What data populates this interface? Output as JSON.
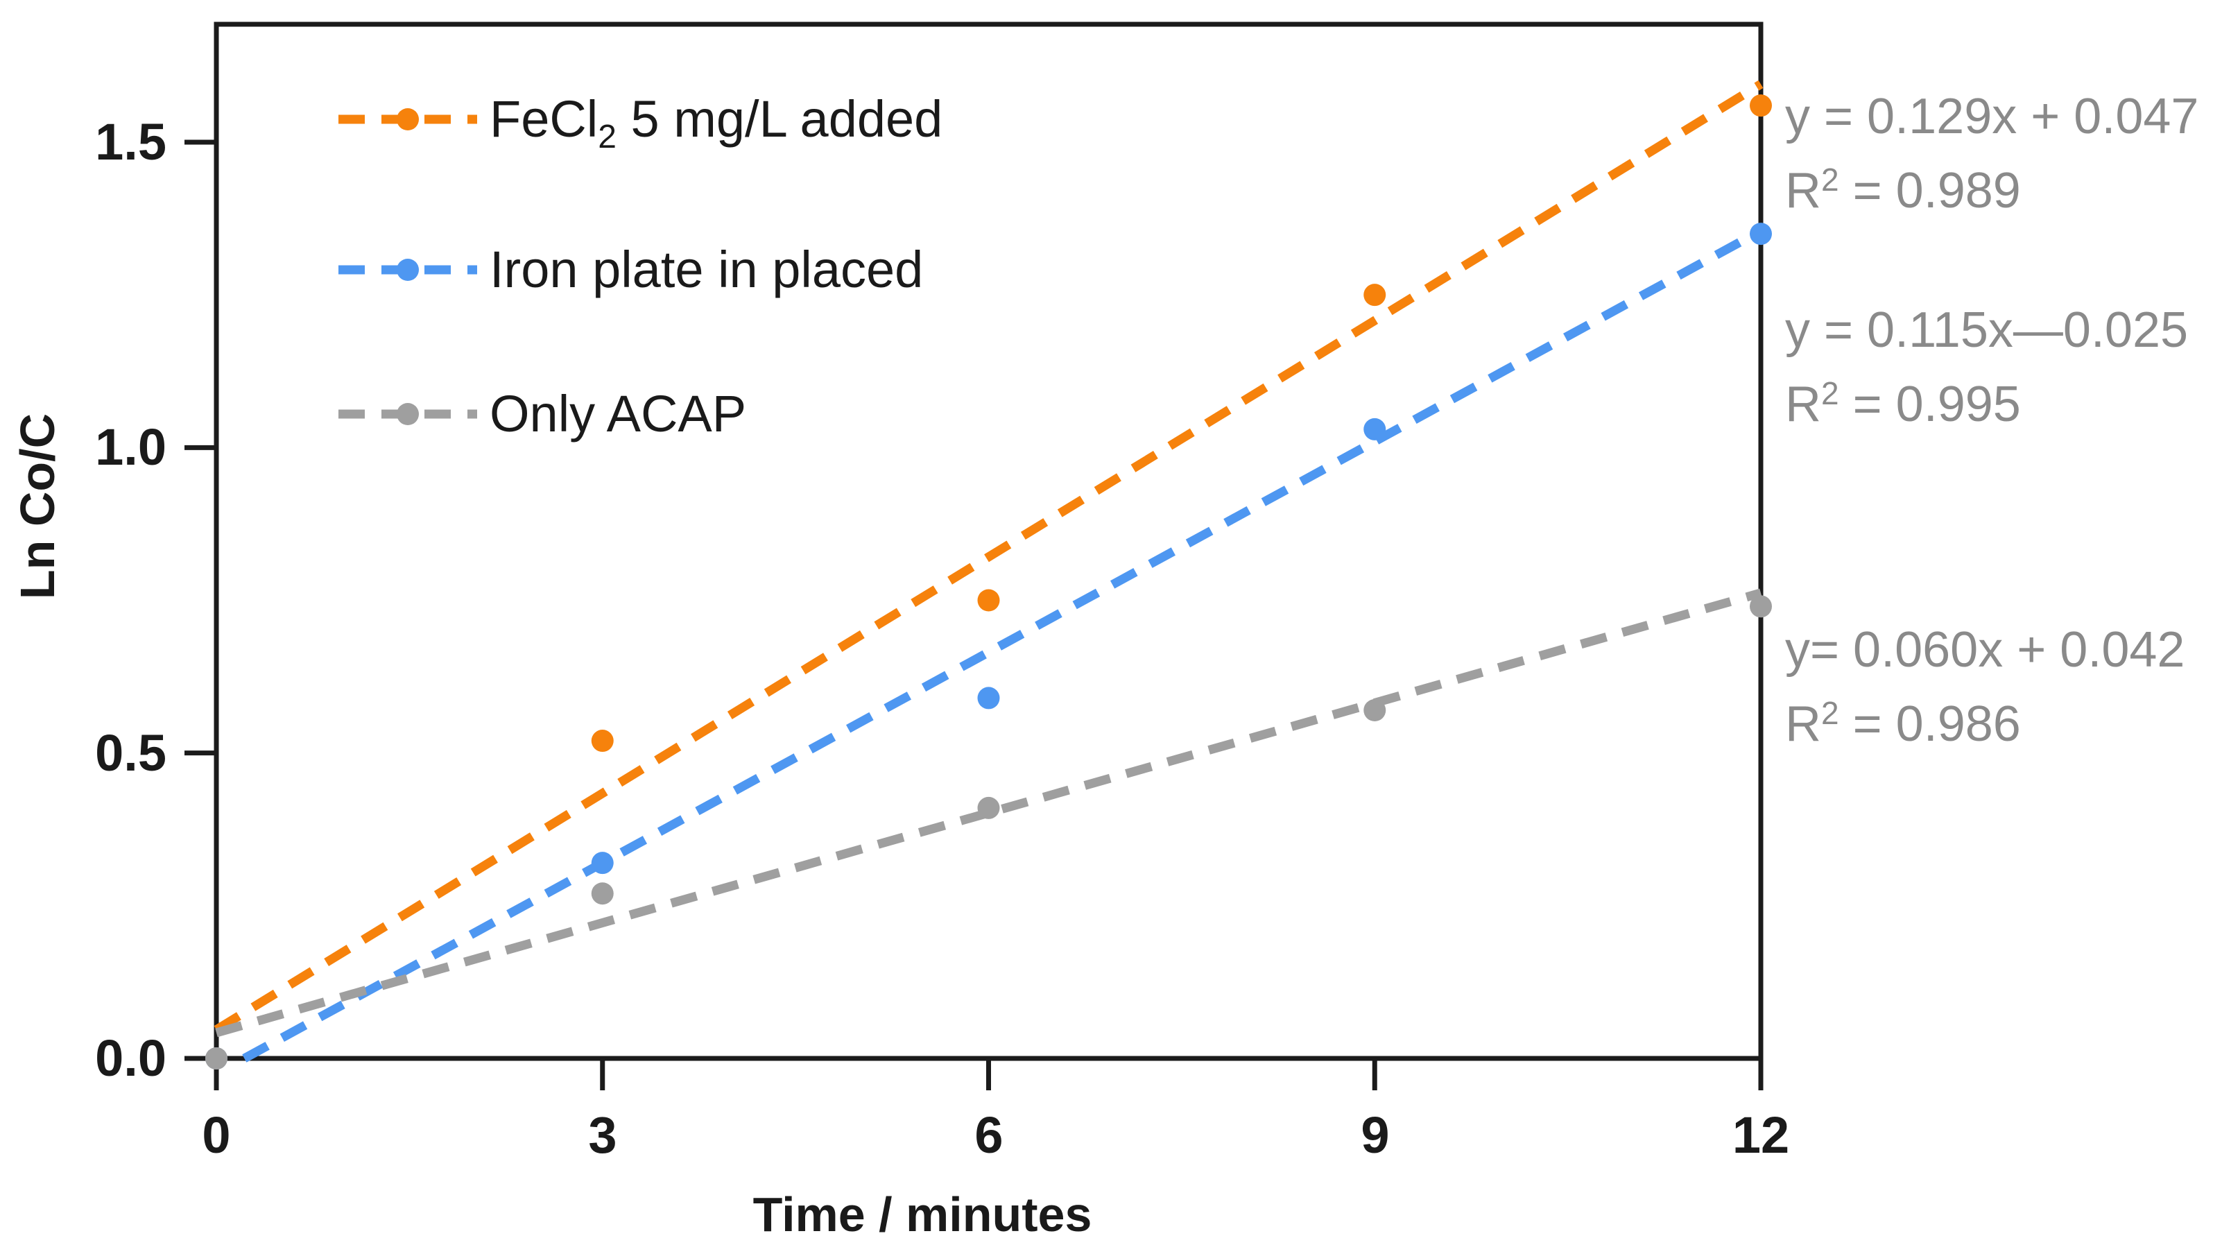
{
  "figure": {
    "xlabel": "Time / minutes",
    "ylabel": "Ln Co/C",
    "x_tick_labels": [
      "0",
      "3",
      "6",
      "9",
      "12"
    ],
    "y_tick_labels": [
      "0.0",
      "0.5",
      "1.0",
      "1.5"
    ]
  },
  "chart_data": {
    "type": "scatter",
    "title": "",
    "xlabel": "Time / minutes",
    "ylabel": "Ln Co/C",
    "x": [
      0,
      3,
      6,
      9,
      12
    ],
    "xlim": [
      0,
      12
    ],
    "ylim": [
      0,
      1.69
    ],
    "x_ticks": [
      0,
      3,
      6,
      9,
      12
    ],
    "y_ticks": [
      0.0,
      0.5,
      1.0,
      1.5
    ],
    "grid": false,
    "legend_position": "upper-left-inside",
    "series": [
      {
        "key": "fecl2",
        "name": "FeCl2 5 mg/L added",
        "label": {
          "pre": "FeCl",
          "sub": "2",
          "post": " 5 mg/L added"
        },
        "color": "#f6820c",
        "marker": "circle",
        "line_style": "dashed",
        "y": [
          0.0,
          0.52,
          0.75,
          1.25,
          1.56
        ],
        "fit": {
          "slope": 0.129,
          "intercept": 0.047,
          "r_squared": 0.989,
          "equation_text": "y = 0.129x + 0.047",
          "r2_base": "R",
          "r2_sup": "2",
          "r2_rest": " = 0.989"
        }
      },
      {
        "key": "iron-plate",
        "name": "Iron plate in placed",
        "label": {
          "pre": "Iron plate in placed",
          "sub": "",
          "post": ""
        },
        "color": "#4e97f1",
        "marker": "circle",
        "line_style": "dashed",
        "y": [
          0.0,
          0.32,
          0.59,
          1.03,
          1.35
        ],
        "fit": {
          "slope": 0.115,
          "intercept": -0.025,
          "r_squared": 0.995,
          "equation_text": "y = 0.115x—0.025",
          "r2_base": "R",
          "r2_sup": "2",
          "r2_rest": " = 0.995"
        }
      },
      {
        "key": "only-acap",
        "name": "Only ACAP",
        "label": {
          "pre": "Only ACAP",
          "sub": "",
          "post": ""
        },
        "color": "#9f9f9f",
        "marker": "circle",
        "line_style": "dashed",
        "y": [
          0.0,
          0.27,
          0.41,
          0.57,
          0.74
        ],
        "fit": {
          "slope": 0.06,
          "intercept": 0.042,
          "r_squared": 0.986,
          "equation_text": "y= 0.060x + 0.042",
          "r2_base": "R",
          "r2_sup": "2",
          "r2_rest": " = 0.986"
        }
      }
    ]
  }
}
